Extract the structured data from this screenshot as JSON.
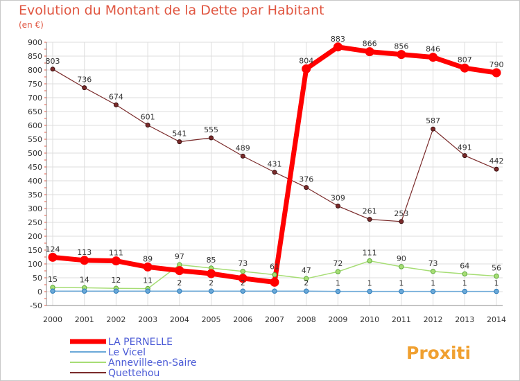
{
  "title": "Evolution du Montant de la Dette par Habitant",
  "unit": "(en €)",
  "logo": "Proxiti",
  "chart_data": {
    "type": "line",
    "title": "Evolution du Montant de la Dette par Habitant",
    "ylabel": "(en €)",
    "x": [
      2000,
      2001,
      2002,
      2003,
      2004,
      2005,
      2006,
      2007,
      2008,
      2009,
      2010,
      2011,
      2012,
      2013,
      2014
    ],
    "yticks": [
      -50,
      0,
      50,
      100,
      150,
      200,
      250,
      300,
      350,
      400,
      450,
      500,
      550,
      600,
      650,
      700,
      750,
      800,
      850,
      900
    ],
    "ylim": [
      -50,
      900
    ],
    "grid": true,
    "legend": "bottom-left",
    "series": [
      {
        "name": "LA PERNELLE",
        "color": "#ff0000",
        "values": [
          124,
          113,
          111,
          89,
          76,
          65,
          48,
          34,
          804,
          883,
          866,
          856,
          846,
          807,
          790
        ],
        "labels": [
          "124",
          "113",
          "111",
          "89",
          "",
          "",
          "",
          "",
          "804",
          "883",
          "866",
          "856",
          "846",
          "807",
          "790"
        ]
      },
      {
        "name": "Le Vicel",
        "color": "#6aa8d8",
        "values": [
          2,
          2,
          2,
          2,
          2,
          2,
          2,
          2,
          2,
          1,
          1,
          1,
          1,
          1,
          1
        ],
        "labels": [
          "",
          "",
          "",
          "",
          "2",
          "2",
          "2",
          "",
          "2",
          "1",
          "1",
          "1",
          "1",
          "1",
          "1"
        ]
      },
      {
        "name": "Anneville-en-Saire",
        "color": "#a6dd74",
        "values": [
          15,
          14,
          12,
          11,
          97,
          85,
          73,
          61,
          47,
          72,
          111,
          90,
          73,
          64,
          56
        ],
        "labels": [
          "15",
          "14",
          "12",
          "11",
          "97",
          "85",
          "73",
          "61",
          "47",
          "72",
          "111",
          "90",
          "73",
          "64",
          "56"
        ]
      },
      {
        "name": "Quettehou",
        "color": "#7a2a2a",
        "values": [
          803,
          736,
          674,
          601,
          541,
          555,
          489,
          431,
          376,
          309,
          261,
          253,
          587,
          491,
          442
        ],
        "labels": [
          "803",
          "736",
          "674",
          "601",
          "541",
          "555",
          "489",
          "431",
          "376",
          "309",
          "261",
          "253",
          "587",
          "491",
          "442"
        ]
      }
    ]
  }
}
